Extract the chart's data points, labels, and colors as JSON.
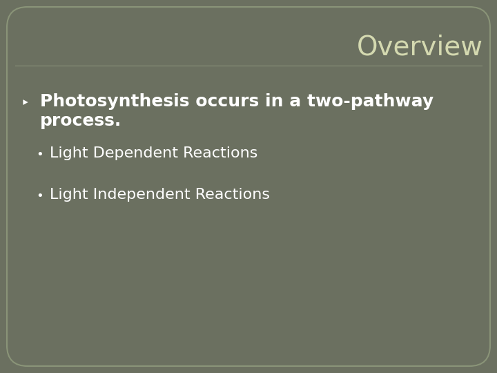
{
  "title": "Overview",
  "title_color": "#d4d9b0",
  "title_fontsize": 28,
  "background_color": "#6b7060",
  "border_color": "#8a9478",
  "line_color": "#8a9478",
  "main_bullet_line1": "Photosynthesis occurs in a two-pathway",
  "main_bullet_line2": "process.",
  "main_bullet_color": "#ffffff",
  "main_bullet_fontsize": 18,
  "main_bullet_marker": "‣",
  "sub_bullets": [
    "Light Dependent Reactions",
    "Light Independent Reactions"
  ],
  "sub_bullet_color": "#ffffff",
  "sub_bullet_fontsize": 16,
  "sub_bullet_marker": "•"
}
